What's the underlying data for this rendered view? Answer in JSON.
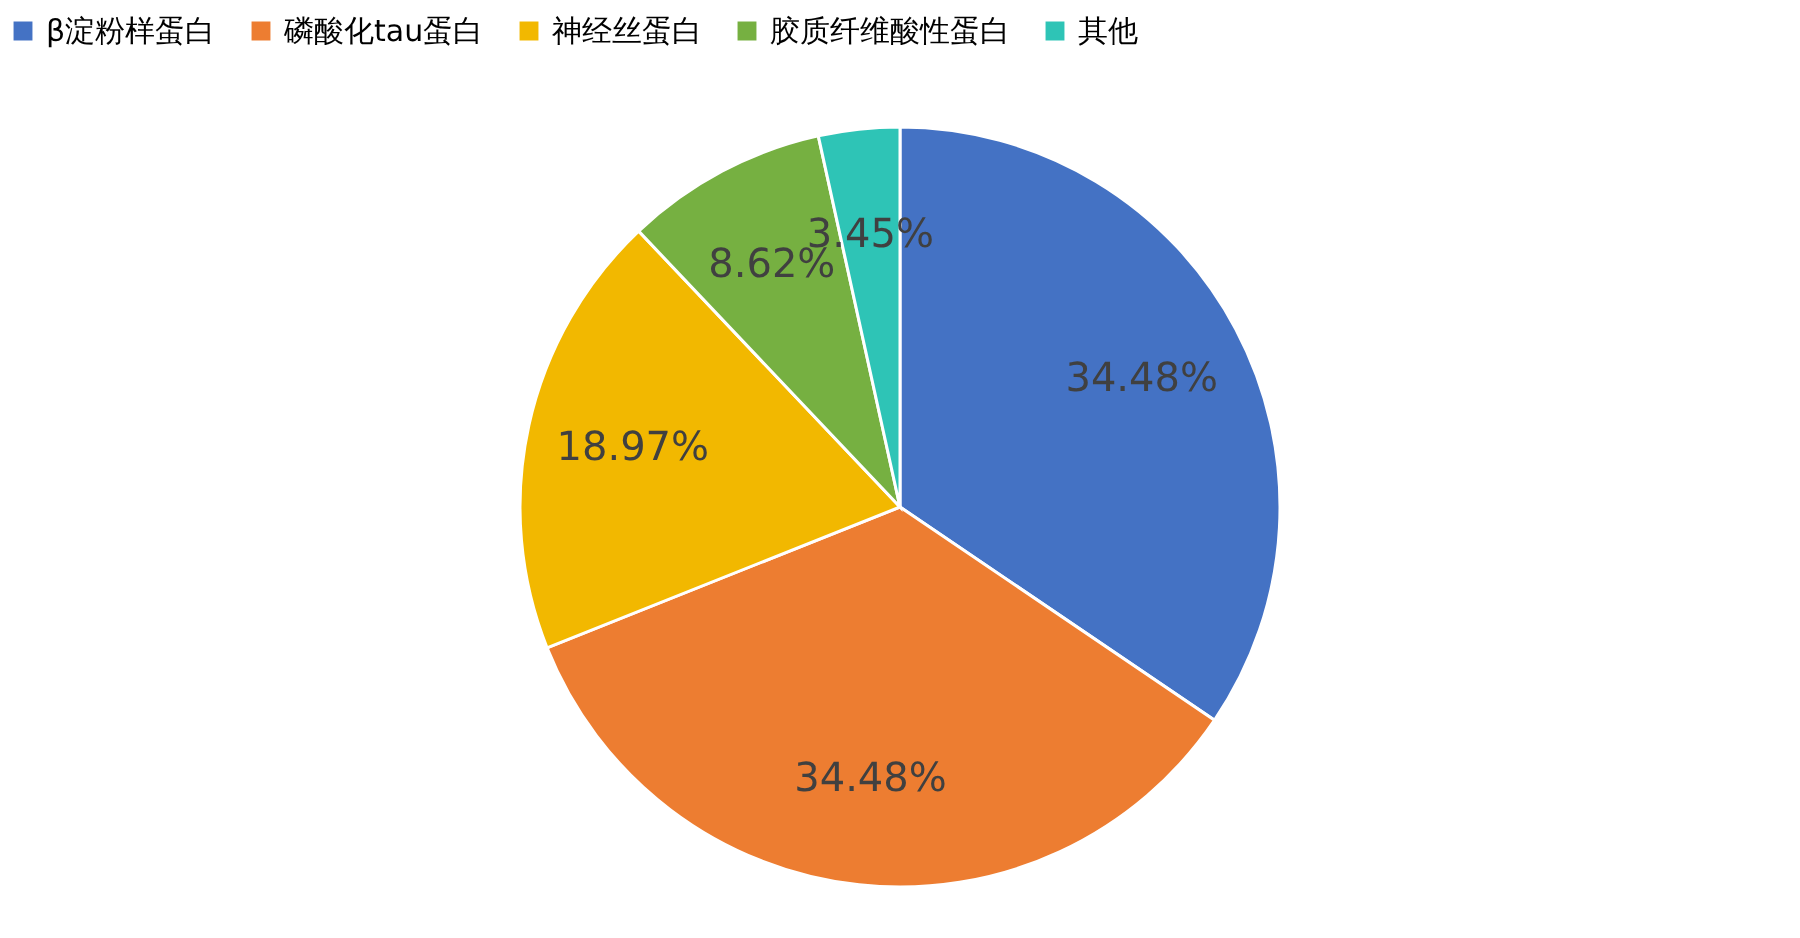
{
  "chart_data": {
    "type": "pie",
    "categories": [
      "β淀粉样蛋白",
      "磷酸化tau蛋白",
      "神经丝蛋白",
      "胶质纤维酸性蛋白",
      "其他"
    ],
    "values": [
      34.48,
      34.48,
      18.97,
      8.62,
      3.45
    ],
    "value_labels": [
      "34.48%",
      "34.48%",
      "18.97%",
      "8.62%",
      "3.45%"
    ],
    "colors": [
      "#4472c4",
      "#ed7d31",
      "#f2b800",
      "#76b041",
      "#2ec4b6"
    ],
    "legend": "top"
  }
}
